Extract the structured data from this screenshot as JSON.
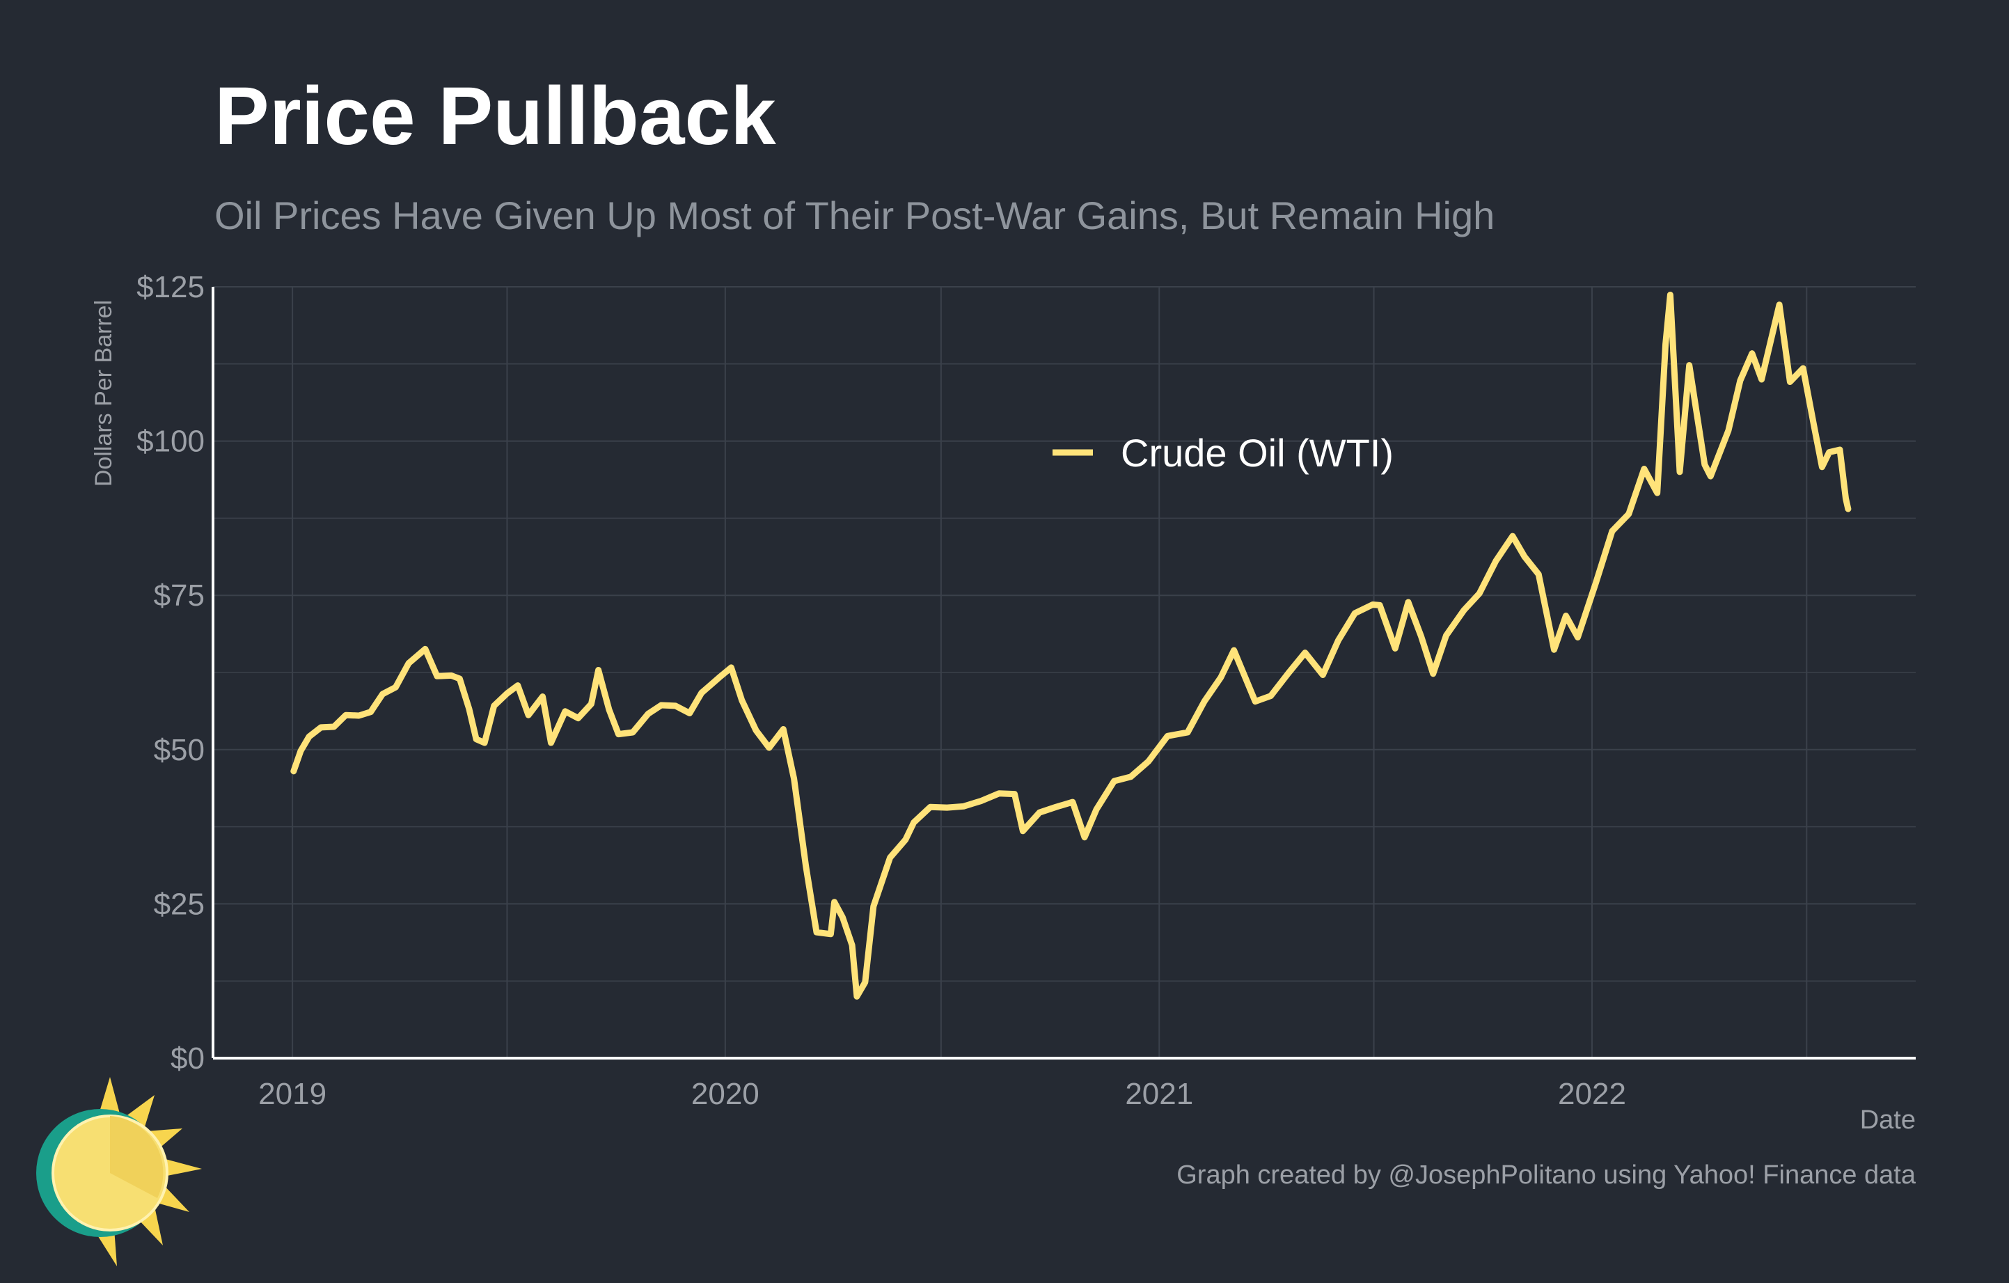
{
  "header": {
    "title": "Price Pullback",
    "subtitle": "Oil Prices Have Given Up Most of Their Post-War Gains, But Remain High"
  },
  "footer": {
    "caption": "Graph created by @JosephPolitano using Yahoo! Finance data",
    "logo_icon": "sun-logo-icon"
  },
  "colors": {
    "background": "#252a33",
    "grid": "#3b414b",
    "axis": "#ffffff",
    "series": "#ffe37a",
    "text_muted": "#9ca0a7"
  },
  "chart_data": {
    "type": "line",
    "title": "Price Pullback",
    "subtitle": "Oil Prices Have Given Up Most of Their Post-War Gains, But Remain High",
    "xlabel": "Date",
    "ylabel": "Dollars Per Barrel",
    "xlim": [
      "2018-10-26",
      "2022-10-01"
    ],
    "ylim": [
      0,
      125
    ],
    "x_ticks": [
      "2019",
      "2020",
      "2021",
      "2022"
    ],
    "x_tick_dates": [
      "2019-01-01",
      "2020-01-01",
      "2021-01-01",
      "2022-01-01"
    ],
    "y_ticks": [
      0,
      25,
      50,
      75,
      100,
      125
    ],
    "y_tick_labels": [
      "$0",
      "$25",
      "$50",
      "$75",
      "$100",
      "$125"
    ],
    "grid": true,
    "legend": {
      "position": "top-center",
      "entries": [
        "Crude Oil (WTI)"
      ]
    },
    "series": [
      {
        "name": "Crude Oil (WTI)",
        "color": "#ffe37a",
        "points": [
          [
            "2019-01-02",
            46.5
          ],
          [
            "2019-01-08",
            49.8
          ],
          [
            "2019-01-15",
            52.1
          ],
          [
            "2019-01-25",
            53.6
          ],
          [
            "2019-02-05",
            53.7
          ],
          [
            "2019-02-15",
            55.6
          ],
          [
            "2019-02-26",
            55.5
          ],
          [
            "2019-03-08",
            56.1
          ],
          [
            "2019-03-18",
            59.0
          ],
          [
            "2019-03-29",
            60.1
          ],
          [
            "2019-04-09",
            64.0
          ],
          [
            "2019-04-23",
            66.3
          ],
          [
            "2019-05-03",
            61.9
          ],
          [
            "2019-05-15",
            62.0
          ],
          [
            "2019-05-22",
            61.5
          ],
          [
            "2019-05-30",
            56.6
          ],
          [
            "2019-06-05",
            51.7
          ],
          [
            "2019-06-12",
            51.1
          ],
          [
            "2019-06-20",
            57.1
          ],
          [
            "2019-07-01",
            59.1
          ],
          [
            "2019-07-10",
            60.4
          ],
          [
            "2019-07-19",
            55.6
          ],
          [
            "2019-07-31",
            58.6
          ],
          [
            "2019-08-07",
            51.1
          ],
          [
            "2019-08-19",
            56.2
          ],
          [
            "2019-08-30",
            55.1
          ],
          [
            "2019-09-10",
            57.4
          ],
          [
            "2019-09-16",
            62.9
          ],
          [
            "2019-09-25",
            56.5
          ],
          [
            "2019-10-03",
            52.5
          ],
          [
            "2019-10-15",
            52.8
          ],
          [
            "2019-10-28",
            55.8
          ],
          [
            "2019-11-08",
            57.2
          ],
          [
            "2019-11-20",
            57.1
          ],
          [
            "2019-12-02",
            55.9
          ],
          [
            "2019-12-12",
            59.2
          ],
          [
            "2019-12-27",
            61.7
          ],
          [
            "2020-01-06",
            63.3
          ],
          [
            "2020-01-15",
            58.0
          ],
          [
            "2020-01-27",
            53.1
          ],
          [
            "2020-02-07",
            50.3
          ],
          [
            "2020-02-19",
            53.3
          ],
          [
            "2020-02-28",
            45.3
          ],
          [
            "2020-03-09",
            31.1
          ],
          [
            "2020-03-18",
            20.4
          ],
          [
            "2020-03-30",
            20.1
          ],
          [
            "2020-04-02",
            25.3
          ],
          [
            "2020-04-09",
            22.8
          ],
          [
            "2020-04-17",
            18.3
          ],
          [
            "2020-04-21",
            10.0
          ],
          [
            "2020-04-28",
            12.3
          ],
          [
            "2020-05-05",
            24.6
          ],
          [
            "2020-05-19",
            32.5
          ],
          [
            "2020-06-01",
            35.4
          ],
          [
            "2020-06-08",
            38.2
          ],
          [
            "2020-06-22",
            40.7
          ],
          [
            "2020-07-06",
            40.6
          ],
          [
            "2020-07-20",
            40.8
          ],
          [
            "2020-08-04",
            41.7
          ],
          [
            "2020-08-19",
            42.9
          ],
          [
            "2020-09-01",
            42.8
          ],
          [
            "2020-09-08",
            36.8
          ],
          [
            "2020-09-22",
            39.8
          ],
          [
            "2020-10-06",
            40.7
          ],
          [
            "2020-10-20",
            41.5
          ],
          [
            "2020-10-30",
            35.8
          ],
          [
            "2020-11-09",
            40.3
          ],
          [
            "2020-11-24",
            44.9
          ],
          [
            "2020-12-08",
            45.6
          ],
          [
            "2020-12-23",
            48.1
          ],
          [
            "2021-01-08",
            52.2
          ],
          [
            "2021-01-25",
            52.8
          ],
          [
            "2021-02-08",
            57.8
          ],
          [
            "2021-02-22",
            61.7
          ],
          [
            "2021-03-05",
            66.1
          ],
          [
            "2021-03-23",
            57.8
          ],
          [
            "2021-04-05",
            58.7
          ],
          [
            "2021-04-20",
            62.4
          ],
          [
            "2021-05-04",
            65.7
          ],
          [
            "2021-05-19",
            62.1
          ],
          [
            "2021-06-01",
            67.7
          ],
          [
            "2021-06-15",
            72.1
          ],
          [
            "2021-06-30",
            73.5
          ],
          [
            "2021-07-06",
            73.4
          ],
          [
            "2021-07-19",
            66.4
          ],
          [
            "2021-07-30",
            73.9
          ],
          [
            "2021-08-10",
            68.3
          ],
          [
            "2021-08-20",
            62.3
          ],
          [
            "2021-08-31",
            68.5
          ],
          [
            "2021-09-15",
            72.6
          ],
          [
            "2021-09-28",
            75.3
          ],
          [
            "2021-10-12",
            80.6
          ],
          [
            "2021-10-26",
            84.6
          ],
          [
            "2021-11-05",
            81.3
          ],
          [
            "2021-11-17",
            78.4
          ],
          [
            "2021-11-30",
            66.2
          ],
          [
            "2021-12-10",
            71.7
          ],
          [
            "2021-12-20",
            68.2
          ],
          [
            "2022-01-04",
            76.9
          ],
          [
            "2022-01-18",
            85.4
          ],
          [
            "2022-02-01",
            88.2
          ],
          [
            "2022-02-14",
            95.5
          ],
          [
            "2022-02-25",
            91.6
          ],
          [
            "2022-03-04",
            115.7
          ],
          [
            "2022-03-08",
            123.7
          ],
          [
            "2022-03-16",
            95.0
          ],
          [
            "2022-03-24",
            112.3
          ],
          [
            "2022-04-06",
            96.2
          ],
          [
            "2022-04-11",
            94.3
          ],
          [
            "2022-04-26",
            101.7
          ],
          [
            "2022-05-06",
            109.8
          ],
          [
            "2022-05-16",
            114.2
          ],
          [
            "2022-05-24",
            110.0
          ],
          [
            "2022-06-08",
            122.1
          ],
          [
            "2022-06-17",
            109.6
          ],
          [
            "2022-06-28",
            111.8
          ],
          [
            "2022-07-07",
            102.7
          ],
          [
            "2022-07-14",
            95.8
          ],
          [
            "2022-07-20",
            98.2
          ],
          [
            "2022-07-29",
            98.6
          ],
          [
            "2022-08-03",
            90.7
          ],
          [
            "2022-08-05",
            89.0
          ]
        ]
      }
    ]
  }
}
